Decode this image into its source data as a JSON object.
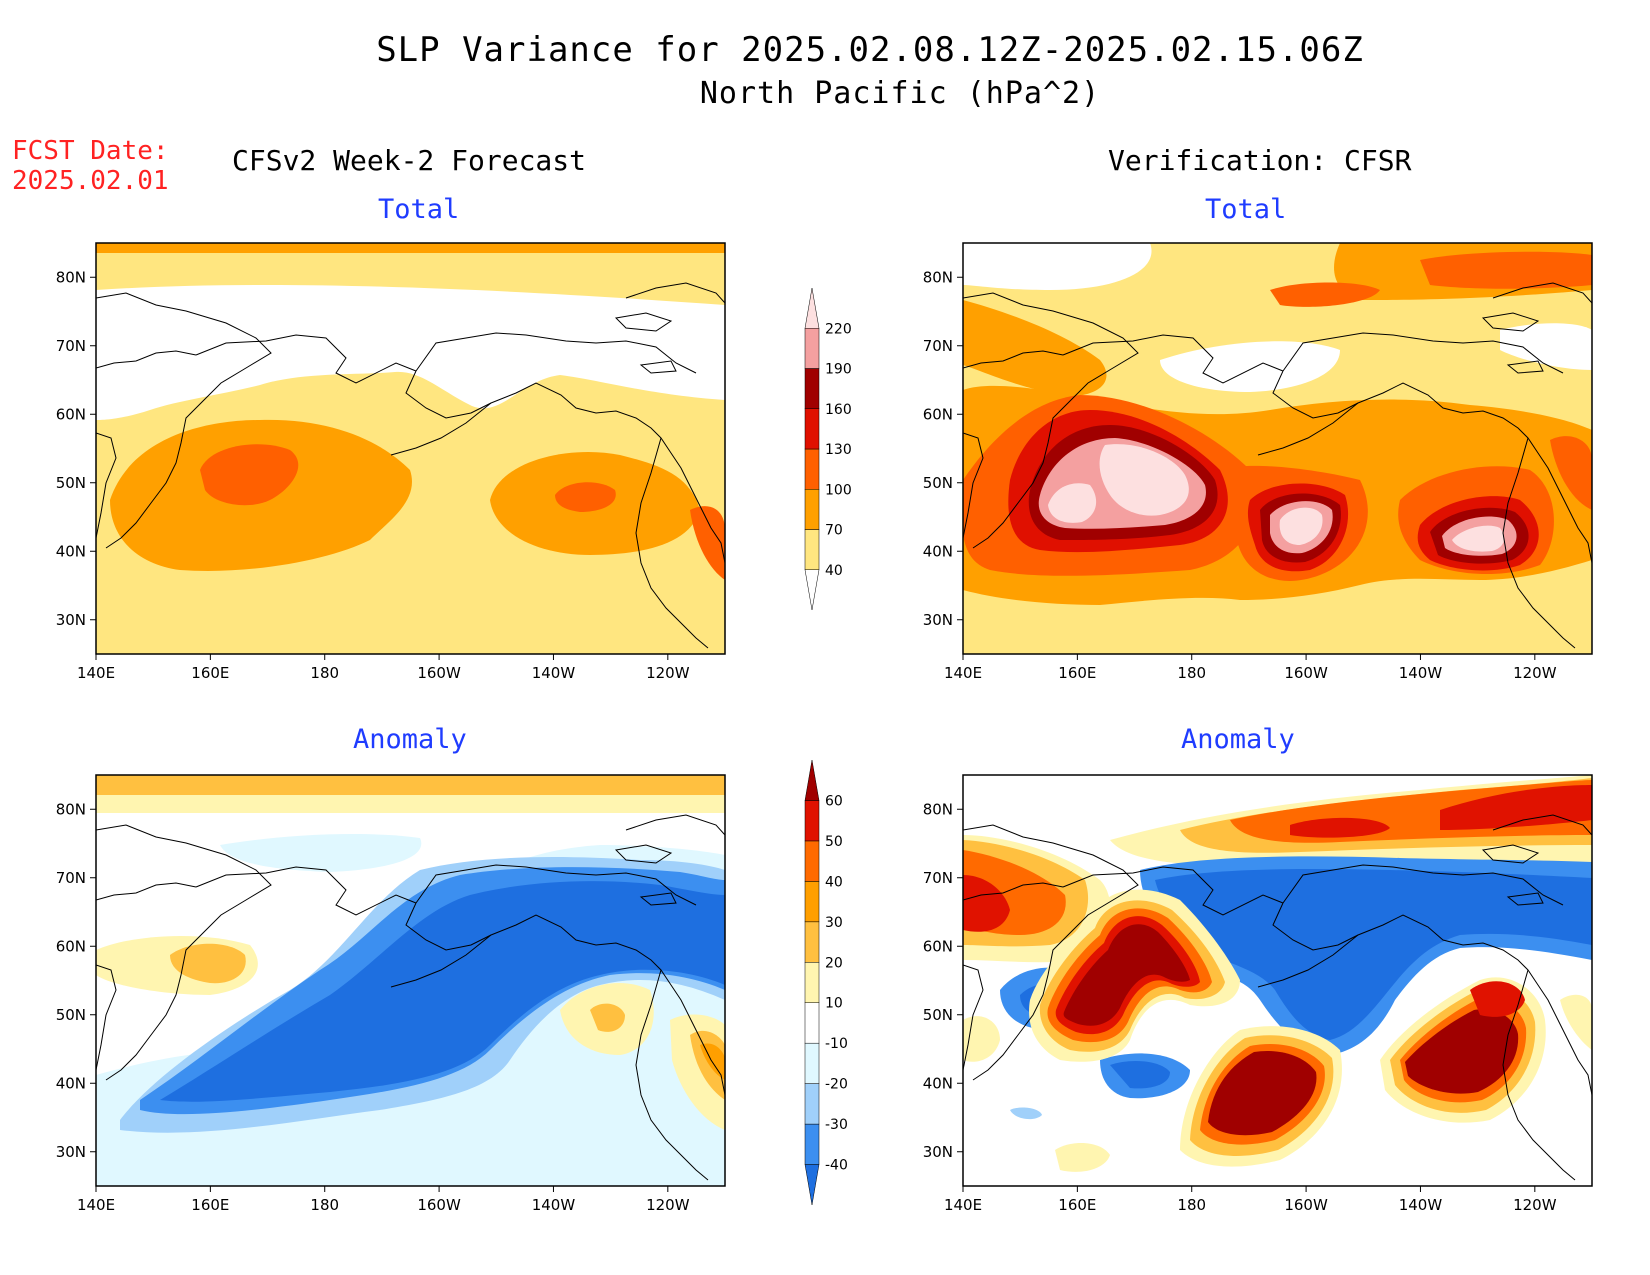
{
  "title": {
    "line1": "SLP Variance for 2025.02.08.12Z-2025.02.15.06Z",
    "line2": "North Pacific (hPa^2)"
  },
  "forecast_date": {
    "label": "FCST Date:",
    "value": "2025.02.01"
  },
  "columns": {
    "left": "CFSv2 Week-2 Forecast",
    "right": "Verification: CFSR"
  },
  "panels": {
    "top_left": "Total",
    "top_right": "Total",
    "bottom_left": "Anomaly",
    "bottom_right": "Anomaly"
  },
  "map_axes": {
    "lat_labels": [
      "80N",
      "70N",
      "60N",
      "50N",
      "40N",
      "30N"
    ],
    "lon_labels": [
      "140E",
      "160E",
      "180",
      "160W",
      "140W",
      "120W"
    ],
    "lat_range": [
      25,
      85
    ],
    "lon_range": [
      140,
      250
    ]
  },
  "colorbars": {
    "total": {
      "labels": [
        "40",
        "70",
        "100",
        "130",
        "160",
        "190",
        "220"
      ],
      "colors": [
        "#ffffff",
        "#ffe680",
        "#ffa000",
        "#ff6000",
        "#e01000",
        "#a00000",
        "#f4a0a0",
        "#fde0e0"
      ]
    },
    "anomaly": {
      "labels": [
        "-40",
        "-30",
        "-20",
        "-10",
        "10",
        "20",
        "30",
        "40",
        "50",
        "60"
      ],
      "colors": [
        "#1e6fe0",
        "#3c8ff0",
        "#a0d0fa",
        "#e0f8ff",
        "#ffffff",
        "#fff5b0",
        "#ffc040",
        "#ff9f00",
        "#ff6a00",
        "#e01200",
        "#a00000"
      ]
    }
  }
}
